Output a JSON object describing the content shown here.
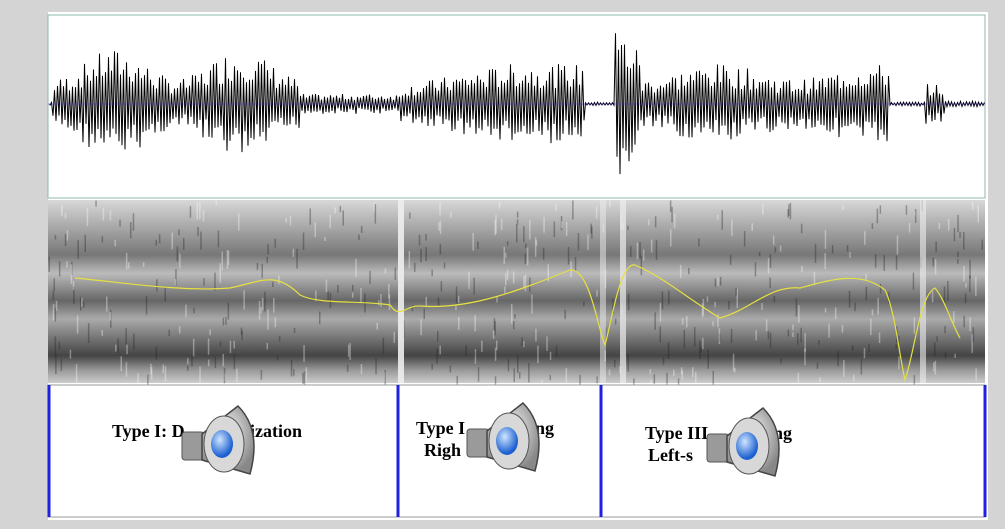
{
  "tier": {
    "intervals": [
      {
        "fragments": [
          "Type I: D",
          "ization"
        ]
      },
      {
        "fragments": [
          "Type I",
          "ing",
          "Righ"
        ]
      },
      {
        "fragments": [
          "Type III",
          "ing",
          "Left-s"
        ]
      }
    ]
  }
}
